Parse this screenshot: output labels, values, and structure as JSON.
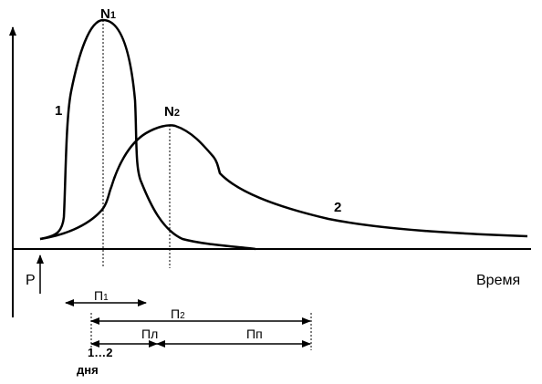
{
  "labels": {
    "n1": "N",
    "n1_sub": "1",
    "n2": "N",
    "n2_sub": "2",
    "curve1": "1",
    "curve2": "2",
    "p": "P",
    "time_axis": "Время",
    "p1": "П",
    "p1_sub": "1",
    "p2": "П",
    "p2_sub": "2",
    "pl": "Пл",
    "pp": "Пп",
    "days_range": "1…2",
    "days_word": "дня"
  },
  "colors": {
    "stroke": "#000000",
    "background": "#ffffff"
  }
}
